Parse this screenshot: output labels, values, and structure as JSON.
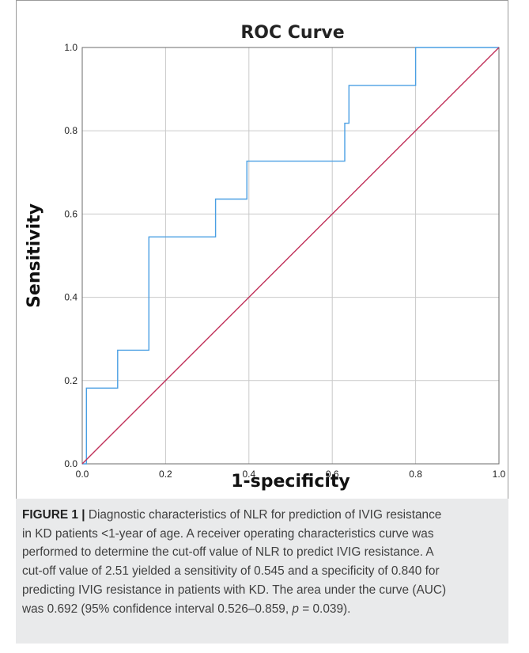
{
  "chart_data": {
    "type": "line",
    "title": "ROC Curve",
    "xlabel": "1-specificity",
    "ylabel": "Sensitivity",
    "xlim": [
      0.0,
      1.0
    ],
    "ylim": [
      0.0,
      1.0
    ],
    "x_ticks": [
      "0.0",
      "0.2",
      "0.4",
      "0.6",
      "0.8",
      "1.0"
    ],
    "y_ticks": [
      "0.0",
      "0.2",
      "0.4",
      "0.6",
      "0.8",
      "1.0"
    ],
    "grid": true,
    "series": [
      {
        "color": "#4a9fe3",
        "x": [
          0.0,
          0.01,
          0.01,
          0.085,
          0.085,
          0.16,
          0.16,
          0.32,
          0.32,
          0.395,
          0.395,
          0.63,
          0.63,
          0.64,
          0.64,
          0.8,
          0.8,
          1.0
        ],
        "y": [
          0.0,
          0.0,
          0.182,
          0.182,
          0.273,
          0.273,
          0.545,
          0.545,
          0.636,
          0.636,
          0.727,
          0.727,
          0.818,
          0.818,
          0.909,
          0.909,
          1.0,
          1.0
        ]
      },
      {
        "color": "#c0315a",
        "x": [
          0.0,
          1.0
        ],
        "y": [
          0.0,
          1.0
        ]
      }
    ]
  },
  "caption": {
    "label": "FIGURE 1 |",
    "lines": [
      " Diagnostic characteristics of NLR for prediction of IVIG resistance",
      "in KD patients <1-year of age. A receiver operating characteristics curve was",
      "performed to determine the cut-off value of NLR to predict IVIG resistance. A",
      "cut-off value of 2.51 yielded a sensitivity of 0.545 and a specificity of 0.840 for",
      "predicting IVIG resistance in patients with KD. The area under the curve (AUC)"
    ],
    "last_line_before_p": "was 0.692 (95% confidence interval 0.526–0.859, ",
    "p_symbol": "p",
    "last_line_after_p": " = 0.039)."
  }
}
